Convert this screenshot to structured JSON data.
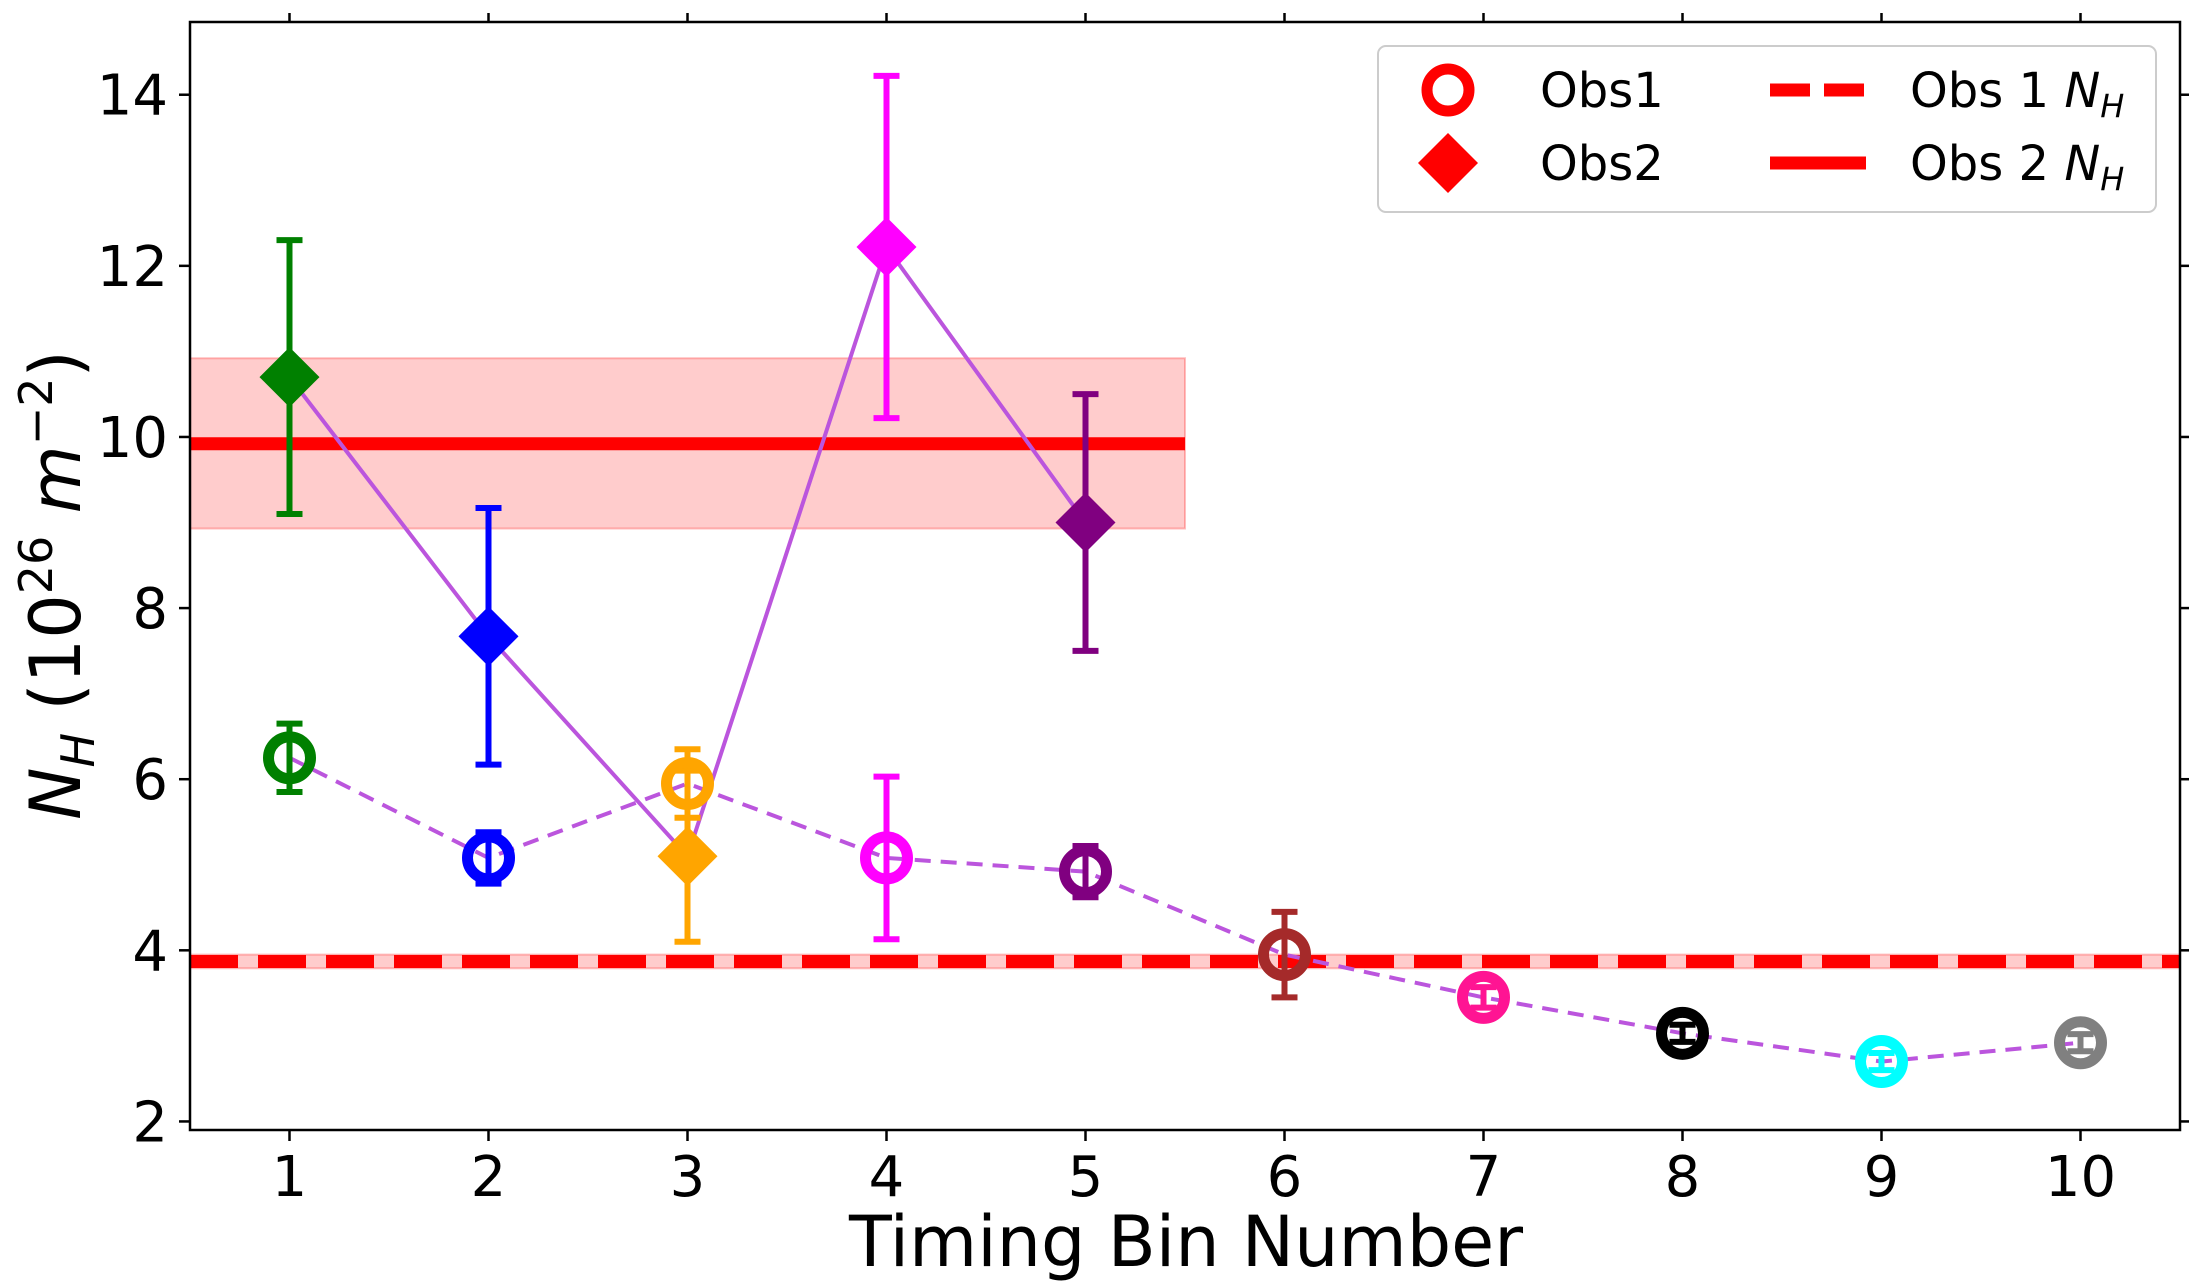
{
  "chart_data": {
    "type": "scatter",
    "title": "",
    "xlabel": "Timing Bin Number",
    "ylabel": "N_H (10^26 m^-2)",
    "xlim": [
      0.5,
      10.5
    ],
    "ylim": [
      1.9,
      14.85
    ],
    "xticks": [
      1,
      2,
      3,
      4,
      5,
      6,
      7,
      8,
      9,
      10
    ],
    "yticks": [
      2,
      4,
      6,
      8,
      10,
      12,
      14
    ],
    "grid": false,
    "legend_position": "top-right",
    "legend": [
      {
        "label": "Obs1",
        "marker": "open-circle",
        "color": "#ff0000"
      },
      {
        "label": "Obs2",
        "marker": "diamond",
        "color": "#ff0000"
      },
      {
        "label": "Obs 1 N_H",
        "line": "dashed",
        "color": "#ff0000"
      },
      {
        "label": "Obs 2 N_H",
        "line": "solid",
        "color": "#ff0000"
      }
    ],
    "series": [
      {
        "name": "Obs1",
        "marker": "open-circle",
        "connector": {
          "style": "dashed",
          "color": "#bb55dd"
        },
        "x": [
          1,
          2,
          3,
          4,
          5,
          6,
          7,
          8,
          9,
          10
        ],
        "y": [
          6.25,
          5.08,
          5.95,
          5.08,
          4.92,
          3.95,
          3.45,
          3.03,
          2.7,
          2.92
        ],
        "err_low": [
          0.4,
          0.3,
          0.4,
          0.95,
          0.3,
          0.5,
          0.12,
          0.1,
          0.1,
          0.1
        ],
        "err_high": [
          0.4,
          0.3,
          0.4,
          0.95,
          0.3,
          0.5,
          0.12,
          0.1,
          0.1,
          0.1
        ],
        "colors": [
          "#008000",
          "#0000ff",
          "#ffa500",
          "#ff00ff",
          "#800080",
          "#a52a2a",
          "#ff1493",
          "#000000",
          "#00ffff",
          "#808080"
        ]
      },
      {
        "name": "Obs2",
        "marker": "diamond",
        "connector": {
          "style": "solid",
          "color": "#bb55dd"
        },
        "x": [
          1,
          2,
          3,
          4,
          5
        ],
        "y": [
          10.7,
          7.67,
          5.1,
          12.22,
          9.0
        ],
        "err_low": [
          1.6,
          1.5,
          1.0,
          2.0,
          1.5
        ],
        "err_high": [
          1.6,
          1.5,
          1.0,
          2.0,
          1.5
        ],
        "colors": [
          "#008000",
          "#0000ff",
          "#ffa500",
          "#ff00ff",
          "#800080"
        ]
      }
    ],
    "reference_lines": [
      {
        "name": "Obs 1 N_H",
        "y": 3.87,
        "style": "dashed",
        "color": "#ff0000",
        "band": [
          3.79,
          3.95
        ],
        "band_x": [
          0.5,
          10.5
        ]
      },
      {
        "name": "Obs 2 N_H",
        "y": 9.92,
        "style": "solid",
        "color": "#ff0000",
        "band": [
          8.93,
          10.92
        ],
        "band_x": [
          0.5,
          5.5
        ]
      }
    ]
  }
}
